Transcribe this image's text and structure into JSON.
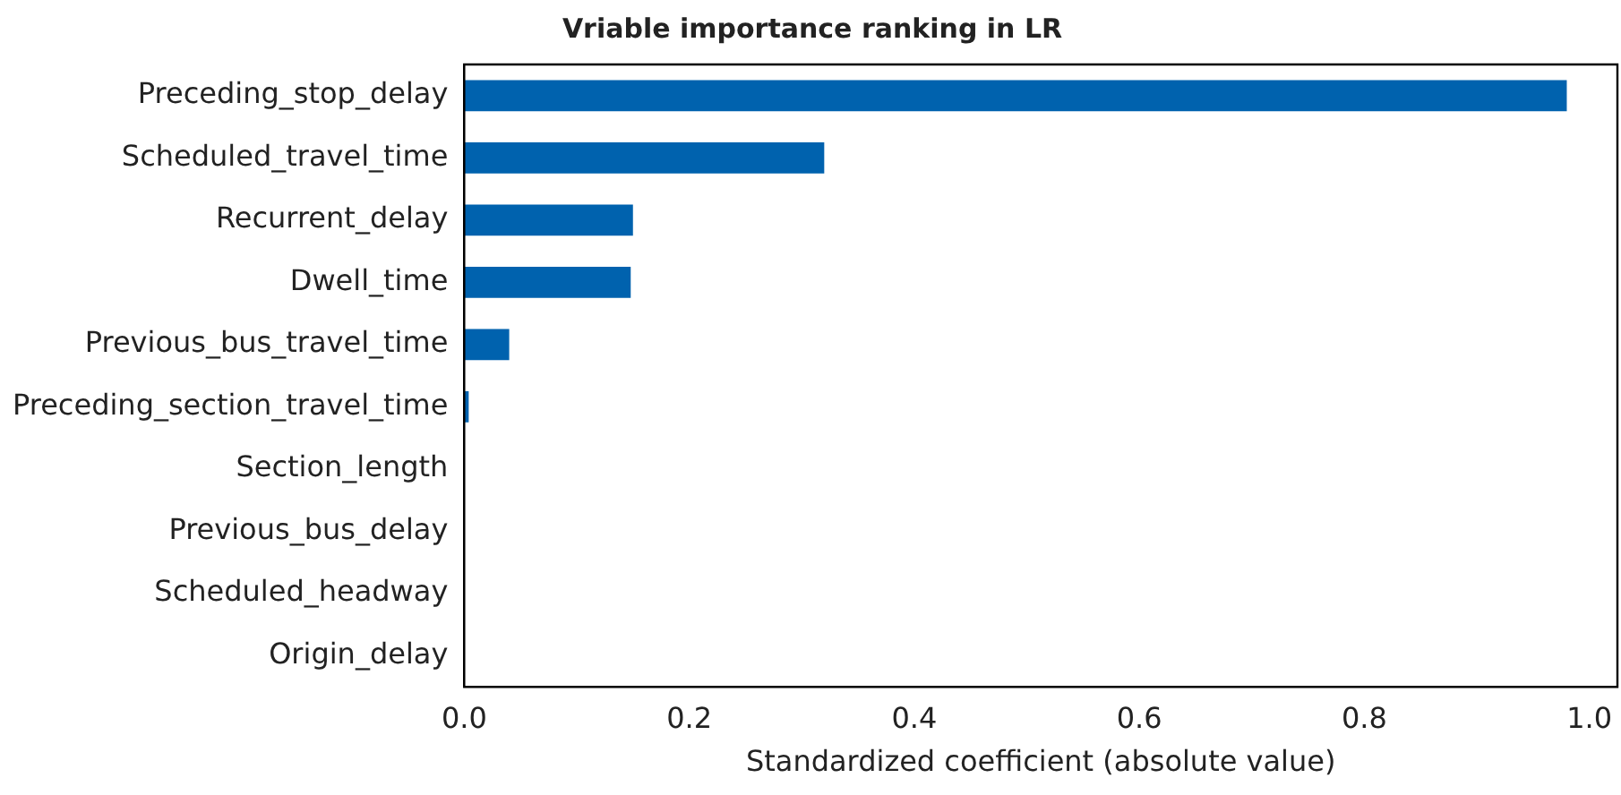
{
  "chart_data": {
    "type": "bar",
    "orientation": "horizontal",
    "title": "Vriable importance ranking in LR",
    "xlabel": "Standardized coefficient (absolute value)",
    "categories": [
      "Preceding_stop_delay",
      "Scheduled_travel_time",
      "Recurrent_delay",
      "Dwell_time",
      "Previous_bus_travel_time",
      "Preceding_section_travel_time",
      "Section_length",
      "Previous_bus_delay",
      "Scheduled_headway",
      "Origin_delay"
    ],
    "values": [
      0.98,
      0.32,
      0.15,
      0.148,
      0.04,
      0.004,
      0,
      0,
      0,
      0
    ],
    "color": "#0062ae",
    "xlim": [
      0,
      1.025
    ],
    "xticks": [
      {
        "value": 0,
        "label": "0.0"
      },
      {
        "value": 0.2,
        "label": "0.2"
      },
      {
        "value": 0.4,
        "label": "0.4"
      },
      {
        "value": 0.6,
        "label": "0.6"
      },
      {
        "value": 0.8,
        "label": "0.8"
      },
      {
        "value": 1,
        "label": "1.0"
      }
    ],
    "grid": false,
    "legend": false
  }
}
